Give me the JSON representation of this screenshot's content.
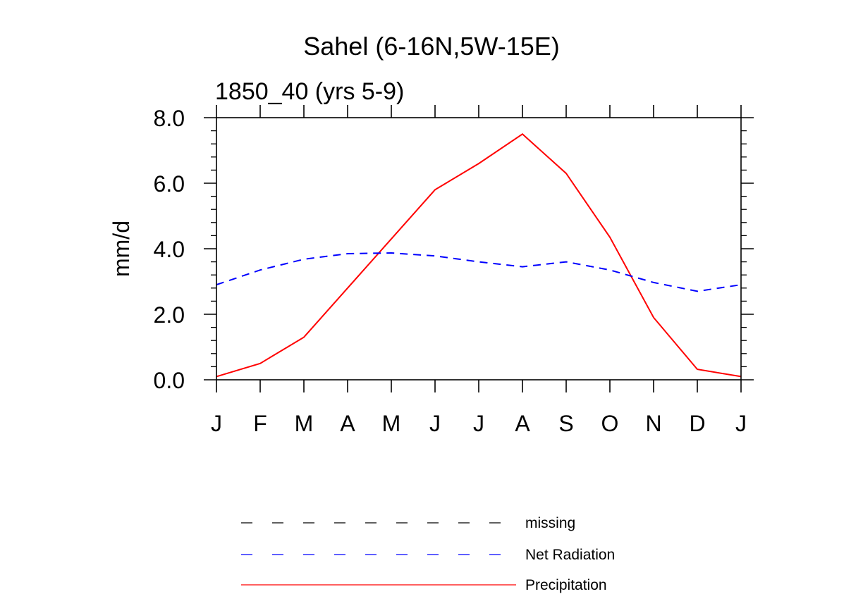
{
  "chart_data": {
    "type": "line",
    "title": "Sahel (6-16N,5W-15E)",
    "subtitle": "1850_40 (yrs 5-9)",
    "xlabel": "",
    "ylabel": "mm/d",
    "categories": [
      "J",
      "F",
      "M",
      "A",
      "M",
      "J",
      "J",
      "A",
      "S",
      "O",
      "N",
      "D",
      "J"
    ],
    "ylim": [
      0,
      8
    ],
    "yticks": [
      0,
      2,
      4,
      6,
      8
    ],
    "ytick_labels": [
      "0.0",
      "2.0",
      "4.0",
      "6.0",
      "8.0"
    ],
    "series": [
      {
        "name": "Precipitation",
        "color": "#ff0000",
        "dash": "solid",
        "values": [
          0.1,
          0.5,
          1.3,
          2.8,
          4.3,
          5.8,
          6.6,
          7.5,
          6.3,
          4.35,
          1.9,
          0.32,
          0.1
        ]
      },
      {
        "name": "Net Radiation",
        "color": "#0000ff",
        "dash": "dashed",
        "values": [
          2.9,
          3.35,
          3.68,
          3.85,
          3.87,
          3.78,
          3.6,
          3.45,
          3.6,
          3.35,
          2.97,
          2.7,
          2.9
        ]
      }
    ],
    "legend": [
      {
        "label": "missing",
        "color": "#000000",
        "dash": "dashed"
      },
      {
        "label": "Net Radiation",
        "color": "#0000ff",
        "dash": "dashed"
      },
      {
        "label": "Precipitation",
        "color": "#ff0000",
        "dash": "solid"
      }
    ],
    "legend_position": "bottom"
  }
}
